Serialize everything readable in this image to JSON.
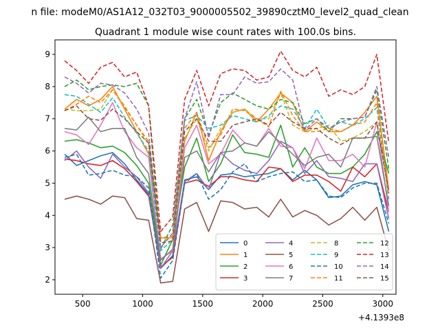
{
  "chart_data": {
    "type": "line",
    "suptitle": "n file: modeM0/AS1A12_032T03_9000005502_39890cztM0_level2_quad_clean",
    "title": "Quadrant 1 module wise count rates with 100.0s bins.",
    "xlabel": "",
    "ylabel": "",
    "x_offset_label": "+4.1393e8",
    "xlim": [
      270,
      3110
    ],
    "ylim": [
      1.55,
      9.45
    ],
    "xticks": [
      500,
      1000,
      1500,
      2000,
      2500,
      3000
    ],
    "yticks": [
      2,
      3,
      4,
      5,
      6,
      7,
      8,
      9
    ],
    "grid": false,
    "legend_location": "lower right",
    "legend_columns": 4,
    "x": [
      350,
      450,
      550,
      650,
      750,
      850,
      950,
      1050,
      1150,
      1250,
      1350,
      1450,
      1550,
      1650,
      1750,
      1850,
      1950,
      2050,
      2150,
      2250,
      2350,
      2450,
      2550,
      2650,
      2750,
      2850,
      2950,
      3050
    ],
    "series": [
      {
        "name": "0",
        "color": "#1f77b4",
        "dash": "solid",
        "values": [
          5.9,
          5.55,
          5.7,
          5.85,
          5.95,
          5.6,
          5.1,
          4.65,
          2.35,
          2.75,
          5.1,
          5.2,
          4.8,
          5.25,
          5.3,
          5.2,
          5.25,
          5.3,
          5.45,
          5.1,
          5.4,
          5.1,
          4.55,
          4.6,
          4.95,
          5.05,
          4.95,
          3.5
        ]
      },
      {
        "name": "1",
        "color": "#ff7f0e",
        "dash": "solid",
        "values": [
          7.3,
          7.6,
          7.4,
          7.6,
          8.0,
          7.3,
          6.6,
          5.9,
          3.3,
          3.3,
          6.3,
          7.2,
          5.7,
          6.6,
          7.2,
          7.3,
          6.9,
          7.3,
          7.8,
          7.5,
          6.6,
          6.9,
          6.6,
          6.6,
          6.8,
          7.2,
          7.7,
          4.8
        ]
      },
      {
        "name": "2",
        "color": "#2ca02c",
        "dash": "solid",
        "values": [
          6.3,
          6.35,
          6.25,
          6.1,
          6.15,
          5.95,
          5.55,
          5.0,
          2.45,
          3.25,
          5.5,
          6.4,
          5.05,
          5.6,
          6.5,
          5.95,
          5.9,
          5.8,
          6.8,
          5.5,
          6.1,
          5.5,
          5.3,
          5.3,
          5.5,
          5.9,
          6.6,
          5.3
        ]
      },
      {
        "name": "3",
        "color": "#d62728",
        "dash": "solid",
        "values": [
          5.75,
          5.7,
          5.6,
          5.55,
          5.7,
          5.45,
          5.05,
          4.6,
          2.4,
          2.7,
          5.0,
          5.1,
          4.9,
          5.2,
          5.2,
          5.1,
          5.05,
          5.5,
          5.45,
          5.05,
          5.25,
          5.25,
          5.05,
          4.75,
          5.5,
          5.2,
          5.6,
          4.1
        ]
      },
      {
        "name": "4",
        "color": "#9467bd",
        "dash": "solid",
        "values": [
          5.7,
          6.0,
          5.5,
          5.15,
          5.9,
          5.5,
          5.2,
          4.7,
          2.35,
          2.9,
          5.05,
          5.3,
          4.8,
          5.95,
          5.6,
          5.4,
          5.3,
          5.7,
          6.3,
          6.1,
          5.3,
          5.7,
          5.2,
          5.15,
          5.05,
          5.6,
          5.6,
          3.9
        ]
      },
      {
        "name": "5",
        "color": "#8c564b",
        "dash": "solid",
        "values": [
          4.5,
          4.6,
          4.5,
          4.35,
          4.6,
          4.55,
          3.9,
          3.85,
          1.9,
          1.95,
          4.2,
          4.4,
          3.5,
          4.45,
          4.4,
          4.2,
          4.25,
          3.95,
          4.5,
          3.95,
          4.15,
          4.0,
          3.7,
          3.9,
          4.25,
          3.85,
          4.25,
          2.9
        ]
      },
      {
        "name": "6",
        "color": "#e377c2",
        "dash": "solid",
        "values": [
          6.6,
          6.5,
          6.2,
          6.8,
          7.5,
          6.6,
          6.1,
          5.8,
          2.65,
          2.9,
          6.1,
          6.8,
          5.6,
          5.9,
          6.65,
          6.25,
          6.15,
          6.7,
          6.15,
          6.1,
          5.45,
          6.4,
          5.7,
          5.7,
          5.9,
          5.5,
          6.9,
          4.1
        ]
      },
      {
        "name": "7",
        "color": "#7f7f7f",
        "dash": "solid",
        "values": [
          6.7,
          6.65,
          7.05,
          6.6,
          6.7,
          6.7,
          5.8,
          5.3,
          2.6,
          2.95,
          5.8,
          6.0,
          5.35,
          5.95,
          6.0,
          6.25,
          6.15,
          6.6,
          6.25,
          5.9,
          5.55,
          5.8,
          5.9,
          5.5,
          6.4,
          6.4,
          6.45,
          4.3
        ]
      },
      {
        "name": "8",
        "color": "#bcbd22",
        "dash": "dashed",
        "values": [
          7.3,
          7.25,
          7.25,
          7.3,
          7.9,
          7.4,
          6.8,
          6.2,
          3.3,
          3.2,
          6.4,
          7.0,
          6.0,
          6.7,
          7.2,
          7.3,
          7.0,
          7.0,
          7.8,
          6.8,
          6.6,
          6.7,
          6.8,
          6.3,
          6.4,
          6.6,
          6.9,
          4.7
        ]
      },
      {
        "name": "9",
        "color": "#17becf",
        "dash": "dashed",
        "values": [
          7.75,
          7.7,
          7.45,
          7.2,
          7.65,
          7.05,
          6.55,
          6.0,
          2.9,
          3.25,
          6.95,
          7.1,
          6.7,
          6.8,
          7.1,
          7.0,
          6.9,
          7.1,
          7.4,
          7.3,
          6.7,
          7.3,
          6.7,
          6.9,
          6.8,
          7.0,
          7.35,
          4.5
        ]
      },
      {
        "name": "10",
        "color": "#1f77b4",
        "dash": "dashed",
        "values": [
          5.8,
          5.9,
          5.25,
          5.3,
          5.4,
          5.25,
          5.2,
          4.85,
          2.05,
          2.6,
          5.0,
          5.3,
          4.5,
          4.8,
          5.35,
          5.6,
          5.05,
          5.2,
          5.3,
          5.35,
          5.05,
          5.1,
          4.6,
          4.55,
          4.85,
          5.0,
          5.0,
          3.75
        ]
      },
      {
        "name": "11",
        "color": "#ff7f0e",
        "dash": "dashed",
        "values": [
          7.25,
          7.45,
          7.7,
          7.5,
          7.9,
          7.35,
          6.8,
          6.3,
          3.3,
          3.35,
          6.7,
          7.2,
          6.1,
          6.5,
          7.3,
          7.25,
          7.0,
          6.75,
          7.85,
          7.1,
          6.6,
          6.6,
          6.7,
          6.6,
          6.8,
          6.9,
          7.5,
          4.6
        ]
      },
      {
        "name": "12",
        "color": "#2ca02c",
        "dash": "dashed",
        "values": [
          8.0,
          8.2,
          7.9,
          8.0,
          8.05,
          8.0,
          8.1,
          7.4,
          2.95,
          3.7,
          7.0,
          7.6,
          6.5,
          7.5,
          7.8,
          7.6,
          7.4,
          7.3,
          7.6,
          7.5,
          6.85,
          7.0,
          6.6,
          7.0,
          7.0,
          7.05,
          7.9,
          5.45
        ]
      },
      {
        "name": "13",
        "color": "#d62728",
        "dash": "dashed",
        "values": [
          8.8,
          8.5,
          8.1,
          8.6,
          8.75,
          8.3,
          8.45,
          7.4,
          3.5,
          3.95,
          7.6,
          8.5,
          7.4,
          8.4,
          8.55,
          8.5,
          8.2,
          8.3,
          9.1,
          8.5,
          8.3,
          8.6,
          7.7,
          7.9,
          7.75,
          8.0,
          9.0,
          6.25
        ]
      },
      {
        "name": "14",
        "color": "#9467bd",
        "dash": "dashed",
        "values": [
          8.3,
          8.1,
          7.8,
          8.1,
          8.05,
          7.8,
          7.3,
          6.55,
          3.0,
          3.45,
          7.0,
          8.15,
          6.4,
          7.75,
          7.75,
          8.3,
          8.1,
          8.15,
          8.55,
          8.2,
          6.65,
          7.0,
          6.7,
          6.9,
          7.0,
          7.05,
          8.0,
          5.8
        ]
      },
      {
        "name": "15",
        "color": "#8c564b",
        "dash": "dashed",
        "values": [
          7.25,
          7.4,
          7.0,
          6.95,
          7.3,
          7.0,
          6.6,
          6.25,
          3.15,
          3.2,
          6.6,
          7.0,
          6.3,
          6.3,
          6.8,
          6.9,
          7.0,
          6.8,
          7.2,
          6.9,
          6.7,
          6.7,
          6.4,
          6.2,
          6.4,
          6.4,
          6.9,
          4.7
        ]
      }
    ]
  }
}
